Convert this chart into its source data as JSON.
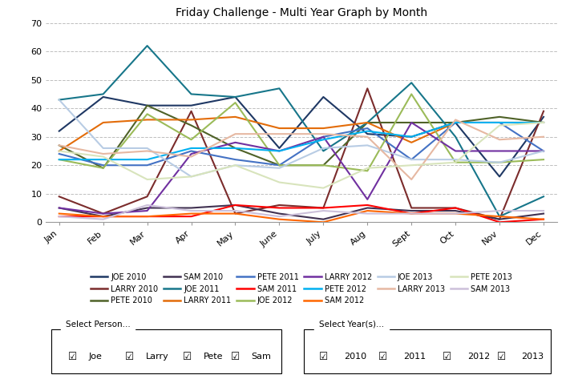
{
  "title": "Friday Challenge - Multi Year Graph by Month",
  "months": [
    "Jan",
    "Feb",
    "Mar",
    "Apr",
    "May",
    "June",
    "July",
    "Aug",
    "Sept",
    "Oct",
    "Nov",
    "Dec"
  ],
  "ylim": [
    0,
    70
  ],
  "yticks": [
    0,
    10,
    20,
    30,
    40,
    50,
    60,
    70
  ],
  "series": [
    {
      "label": "JOE 2010",
      "color": "#1F3864",
      "values": [
        32,
        44,
        41,
        41,
        44,
        26,
        44,
        31,
        30,
        35,
        16,
        37
      ]
    },
    {
      "label": "LARRY 2010",
      "color": "#7B2C2C",
      "values": [
        9,
        3,
        9,
        39,
        3,
        6,
        5,
        47,
        5,
        5,
        1,
        39
      ]
    },
    {
      "label": "PETE 2010",
      "color": "#4F6228",
      "values": [
        27,
        19,
        41,
        34,
        26,
        20,
        20,
        35,
        35,
        35,
        37,
        35
      ]
    },
    {
      "label": "SAM 2010",
      "color": "#403151",
      "values": [
        5,
        2,
        5,
        5,
        6,
        3,
        1,
        5,
        4,
        4,
        1,
        3
      ]
    },
    {
      "label": "JOE 2011",
      "color": "#17768A",
      "values": [
        43,
        45,
        62,
        45,
        44,
        47,
        25,
        35,
        49,
        30,
        2,
        9
      ]
    },
    {
      "label": "LARRY 2011",
      "color": "#E36C09",
      "values": [
        25,
        35,
        36,
        36,
        37,
        33,
        33,
        35,
        28,
        35,
        35,
        35
      ]
    },
    {
      "label": "PETE 2011",
      "color": "#4472C4",
      "values": [
        24,
        20,
        20,
        25,
        22,
        20,
        30,
        33,
        22,
        35,
        35,
        25
      ]
    },
    {
      "label": "SAM 2011",
      "color": "#FF0000",
      "values": [
        2,
        2,
        2,
        2,
        6,
        5,
        5,
        6,
        3,
        5,
        0,
        1
      ]
    },
    {
      "label": "JOE 2012",
      "color": "#9BBB59",
      "values": [
        22,
        19,
        38,
        29,
        42,
        20,
        20,
        18,
        45,
        21,
        21,
        22
      ]
    },
    {
      "label": "LARRY 2012",
      "color": "#7030A0",
      "values": [
        5,
        3,
        4,
        24,
        28,
        25,
        30,
        8,
        35,
        25,
        25,
        25
      ]
    },
    {
      "label": "PETE 2012",
      "color": "#00B0F0",
      "values": [
        22,
        22,
        22,
        26,
        26,
        25,
        29,
        32,
        30,
        35,
        35,
        35
      ]
    },
    {
      "label": "SAM 2012",
      "color": "#FF6600",
      "values": [
        3,
        2,
        2,
        3,
        3,
        1,
        0,
        4,
        3,
        3,
        2,
        1
      ]
    },
    {
      "label": "JOE 2013",
      "color": "#B8CCE4",
      "values": [
        43,
        26,
        26,
        16,
        20,
        19,
        26,
        27,
        22,
        22,
        21,
        25
      ]
    },
    {
      "label": "LARRY 2013",
      "color": "#E6B8A2",
      "values": [
        27,
        24,
        25,
        23,
        31,
        31,
        31,
        30,
        15,
        36,
        29,
        30
      ]
    },
    {
      "label": "PETE 2013",
      "color": "#D8E4BC",
      "values": [
        25,
        23,
        15,
        16,
        20,
        14,
        12,
        19,
        20,
        21,
        34,
        35
      ]
    },
    {
      "label": "SAM 2013",
      "color": "#CCC0DA",
      "values": [
        2,
        1,
        6,
        4,
        4,
        2,
        4,
        3,
        3,
        3,
        4,
        4
      ]
    }
  ],
  "background_color": "#FFFFFF",
  "grid_color": "#BFBFBF",
  "select_person_label": "Select Person...",
  "select_year_label": "Select Year(s)...",
  "persons": [
    "Joe",
    "Larry",
    "Pete",
    "Sam"
  ],
  "years": [
    "2010",
    "2011",
    "2012",
    "2013"
  ]
}
